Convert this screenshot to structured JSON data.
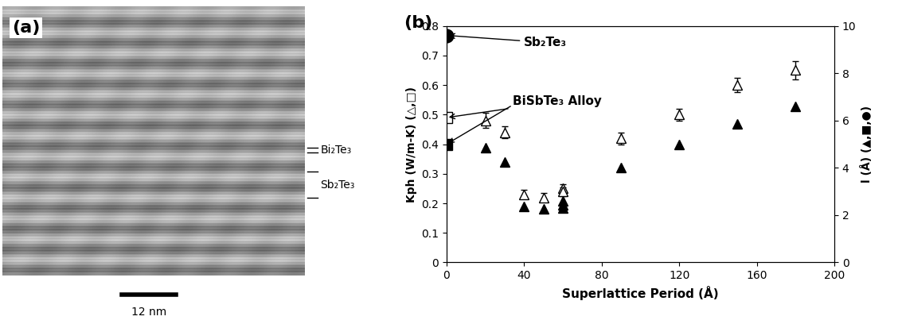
{
  "image_panel": {
    "label": "(a)",
    "layer_labels": [
      "Bi₂Te₃",
      "Sb₂Te₃"
    ],
    "scale_bar": "12 nm"
  },
  "chart_data": {
    "type": "scatter",
    "title": "(b)",
    "x_label": "Superlattice Period (Å)",
    "y_label": "Kph (W/m-K) (△,□)",
    "y2_label": "l (Å) (▲,■,●)",
    "xlim": [
      0,
      200
    ],
    "xticks": [
      0,
      40,
      80,
      120,
      160,
      200
    ],
    "ylim": [
      0,
      0.8
    ],
    "yticks": [
      0,
      0.1,
      0.2,
      0.3,
      0.4,
      0.5,
      0.6,
      0.7,
      0.8
    ],
    "y2lim": [
      0,
      10
    ],
    "y2ticks": [
      0,
      2,
      4,
      6,
      8,
      10
    ],
    "grid": false,
    "annotations": [
      "Sb₂Te₃",
      "BiSbTe₃ Alloy"
    ],
    "series": [
      {
        "x": [
          20,
          30,
          40,
          50,
          60,
          60,
          90,
          120,
          150,
          180
        ],
        "values": [
          0.48,
          0.44,
          0.23,
          0.22,
          0.25,
          0.24,
          0.42,
          0.5,
          0.6,
          0.65
        ],
        "errors": [
          0.025,
          0.02,
          0.015,
          0.015,
          0.015,
          0.015,
          0.02,
          0.02,
          0.025,
          0.03
        ],
        "axis": "y",
        "marker": "triangle_open",
        "color": "#000000"
      },
      {
        "x": [
          20,
          30,
          40,
          50,
          60,
          60,
          60,
          90,
          120,
          150,
          180
        ],
        "values": [
          4.85,
          4.25,
          2.35,
          2.25,
          2.6,
          2.45,
          2.3,
          4.0,
          5.0,
          5.85,
          6.6
        ],
        "axis": "y2",
        "marker": "triangle",
        "color": "#000000"
      },
      {
        "x": [
          0
        ],
        "values": [
          9.6
        ],
        "axis": "y2",
        "marker": "circle",
        "color": "#000000"
      },
      {
        "x": [
          0
        ],
        "values": [
          0.49
        ],
        "axis": "y",
        "marker": "square_open",
        "color": "#000000"
      },
      {
        "x": [
          0
        ],
        "values": [
          5.0
        ],
        "axis": "y2",
        "marker": "square",
        "color": "#000000"
      }
    ]
  }
}
